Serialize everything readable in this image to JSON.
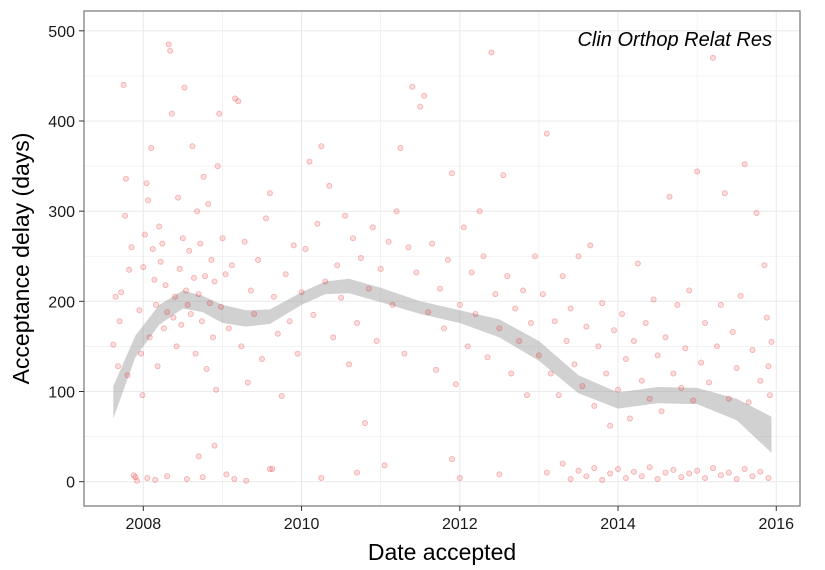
{
  "chart_data": {
    "type": "scatter",
    "title": "",
    "annotation": "Clin Orthop Relat Res",
    "xlabel": "Date accepted",
    "ylabel": "Acceptance delay (days)",
    "x_unit": "year",
    "xlim": [
      2007.25,
      2016.3
    ],
    "ylim": [
      -27,
      522
    ],
    "x_ticks": [
      2008,
      2010,
      2012,
      2014,
      2016
    ],
    "x_tick_labels": [
      "2008",
      "2010",
      "2012",
      "2014",
      "2016"
    ],
    "y_ticks": [
      0,
      100,
      200,
      300,
      400,
      500
    ],
    "y_tick_labels": [
      "0",
      "100",
      "200",
      "300",
      "400",
      "500"
    ],
    "grid": true,
    "legend": "none",
    "colors": {
      "points": "#e41a1c",
      "smooth_band": "#999999",
      "grid": "#ebebeb",
      "panel_border": "#7f7f7f"
    },
    "point_alpha": 0.15,
    "series": [
      {
        "name": "",
        "kind": "points",
        "points": [
          [
            2007.62,
            152
          ],
          [
            2007.65,
            205
          ],
          [
            2007.68,
            128
          ],
          [
            2007.7,
            178
          ],
          [
            2007.72,
            210
          ],
          [
            2007.75,
            440
          ],
          [
            2007.77,
            295
          ],
          [
            2007.78,
            336
          ],
          [
            2007.8,
            118
          ],
          [
            2007.82,
            235
          ],
          [
            2007.85,
            260
          ],
          [
            2007.88,
            7
          ],
          [
            2007.9,
            5
          ],
          [
            2007.92,
            1
          ],
          [
            2007.95,
            190
          ],
          [
            2007.97,
            142
          ],
          [
            2007.99,
            96
          ],
          [
            2008.0,
            238
          ],
          [
            2008.02,
            274
          ],
          [
            2008.04,
            331
          ],
          [
            2008.06,
            312
          ],
          [
            2008.08,
            160
          ],
          [
            2008.1,
            370
          ],
          [
            2008.12,
            258
          ],
          [
            2008.14,
            224
          ],
          [
            2008.16,
            196
          ],
          [
            2008.18,
            128
          ],
          [
            2008.2,
            283
          ],
          [
            2008.22,
            244
          ],
          [
            2008.24,
            264
          ],
          [
            2008.26,
            170
          ],
          [
            2008.28,
            218
          ],
          [
            2008.3,
            188
          ],
          [
            2008.32,
            485
          ],
          [
            2008.34,
            478
          ],
          [
            2008.36,
            408
          ],
          [
            2008.38,
            182
          ],
          [
            2008.4,
            205
          ],
          [
            2008.42,
            150
          ],
          [
            2008.44,
            315
          ],
          [
            2008.46,
            236
          ],
          [
            2008.48,
            174
          ],
          [
            2008.5,
            270
          ],
          [
            2008.52,
            437
          ],
          [
            2008.54,
            212
          ],
          [
            2008.56,
            196
          ],
          [
            2008.58,
            256
          ],
          [
            2008.6,
            186
          ],
          [
            2008.62,
            372
          ],
          [
            2008.64,
            226
          ],
          [
            2008.66,
            142
          ],
          [
            2008.68,
            300
          ],
          [
            2008.7,
            208
          ],
          [
            2008.72,
            264
          ],
          [
            2008.74,
            178
          ],
          [
            2008.76,
            338
          ],
          [
            2008.78,
            228
          ],
          [
            2008.8,
            125
          ],
          [
            2008.82,
            308
          ],
          [
            2008.84,
            198
          ],
          [
            2008.86,
            246
          ],
          [
            2008.88,
            160
          ],
          [
            2008.9,
            222
          ],
          [
            2008.92,
            102
          ],
          [
            2008.94,
            350
          ],
          [
            2008.96,
            408
          ],
          [
            2008.98,
            194
          ],
          [
            2009.0,
            270
          ],
          [
            2009.04,
            230
          ],
          [
            2009.08,
            170
          ],
          [
            2009.12,
            240
          ],
          [
            2009.16,
            425
          ],
          [
            2009.2,
            422
          ],
          [
            2009.24,
            150
          ],
          [
            2009.28,
            266
          ],
          [
            2009.32,
            110
          ],
          [
            2009.36,
            212
          ],
          [
            2009.4,
            186
          ],
          [
            2009.45,
            246
          ],
          [
            2009.5,
            136
          ],
          [
            2009.55,
            292
          ],
          [
            2009.6,
            320
          ],
          [
            2009.65,
            205
          ],
          [
            2009.7,
            164
          ],
          [
            2009.75,
            95
          ],
          [
            2009.8,
            230
          ],
          [
            2009.85,
            178
          ],
          [
            2009.9,
            262
          ],
          [
            2009.95,
            142
          ],
          [
            2010.0,
            210
          ],
          [
            2010.05,
            258
          ],
          [
            2010.1,
            355
          ],
          [
            2010.15,
            185
          ],
          [
            2010.2,
            286
          ],
          [
            2010.25,
            372
          ],
          [
            2010.3,
            222
          ],
          [
            2010.35,
            328
          ],
          [
            2010.4,
            160
          ],
          [
            2010.45,
            240
          ],
          [
            2010.5,
            204
          ],
          [
            2010.55,
            295
          ],
          [
            2010.6,
            130
          ],
          [
            2010.65,
            270
          ],
          [
            2010.7,
            176
          ],
          [
            2010.75,
            248
          ],
          [
            2010.8,
            65
          ],
          [
            2010.85,
            214
          ],
          [
            2010.9,
            282
          ],
          [
            2010.95,
            156
          ],
          [
            2011.0,
            236
          ],
          [
            2011.05,
            18
          ],
          [
            2011.1,
            266
          ],
          [
            2011.15,
            196
          ],
          [
            2011.2,
            300
          ],
          [
            2011.25,
            370
          ],
          [
            2011.3,
            142
          ],
          [
            2011.35,
            260
          ],
          [
            2011.4,
            438
          ],
          [
            2011.45,
            232
          ],
          [
            2011.5,
            416
          ],
          [
            2011.55,
            428
          ],
          [
            2011.6,
            188
          ],
          [
            2011.65,
            264
          ],
          [
            2011.7,
            124
          ],
          [
            2011.75,
            214
          ],
          [
            2011.8,
            170
          ],
          [
            2011.85,
            246
          ],
          [
            2011.9,
            342
          ],
          [
            2011.95,
            108
          ],
          [
            2012.0,
            196
          ],
          [
            2012.05,
            282
          ],
          [
            2012.1,
            150
          ],
          [
            2012.15,
            232
          ],
          [
            2012.2,
            186
          ],
          [
            2012.25,
            300
          ],
          [
            2012.3,
            250
          ],
          [
            2012.35,
            138
          ],
          [
            2012.4,
            476
          ],
          [
            2012.45,
            208
          ],
          [
            2012.5,
            170
          ],
          [
            2012.55,
            340
          ],
          [
            2012.6,
            228
          ],
          [
            2012.65,
            120
          ],
          [
            2012.7,
            192
          ],
          [
            2012.75,
            156
          ],
          [
            2012.8,
            212
          ],
          [
            2012.85,
            96
          ],
          [
            2012.9,
            176
          ],
          [
            2012.95,
            250
          ],
          [
            2013.0,
            140
          ],
          [
            2013.05,
            208
          ],
          [
            2013.1,
            386
          ],
          [
            2013.15,
            120
          ],
          [
            2013.2,
            178
          ],
          [
            2013.25,
            96
          ],
          [
            2013.3,
            228
          ],
          [
            2013.35,
            156
          ],
          [
            2013.4,
            192
          ],
          [
            2013.45,
            130
          ],
          [
            2013.5,
            250
          ],
          [
            2013.55,
            106
          ],
          [
            2013.6,
            172
          ],
          [
            2013.65,
            262
          ],
          [
            2013.7,
            84
          ],
          [
            2013.75,
            150
          ],
          [
            2013.8,
            198
          ],
          [
            2013.85,
            120
          ],
          [
            2013.9,
            62
          ],
          [
            2013.95,
            168
          ],
          [
            2014.0,
            102
          ],
          [
            2014.05,
            186
          ],
          [
            2014.1,
            136
          ],
          [
            2014.15,
            70
          ],
          [
            2014.2,
            156
          ],
          [
            2014.25,
            242
          ],
          [
            2014.3,
            112
          ],
          [
            2014.35,
            176
          ],
          [
            2014.4,
            92
          ],
          [
            2014.45,
            202
          ],
          [
            2014.5,
            140
          ],
          [
            2014.55,
            78
          ],
          [
            2014.6,
            160
          ],
          [
            2014.65,
            316
          ],
          [
            2014.7,
            120
          ],
          [
            2014.75,
            196
          ],
          [
            2014.8,
            104
          ],
          [
            2014.85,
            148
          ],
          [
            2014.9,
            212
          ],
          [
            2014.95,
            90
          ],
          [
            2015.0,
            344
          ],
          [
            2015.05,
            132
          ],
          [
            2015.1,
            176
          ],
          [
            2015.15,
            110
          ],
          [
            2015.2,
            470
          ],
          [
            2015.25,
            150
          ],
          [
            2015.3,
            196
          ],
          [
            2015.35,
            320
          ],
          [
            2015.4,
            92
          ],
          [
            2015.45,
            166
          ],
          [
            2015.5,
            126
          ],
          [
            2015.55,
            206
          ],
          [
            2015.6,
            352
          ],
          [
            2015.65,
            88
          ],
          [
            2015.7,
            146
          ],
          [
            2015.75,
            298
          ],
          [
            2015.8,
            112
          ],
          [
            2015.85,
            240
          ],
          [
            2015.88,
            182
          ],
          [
            2015.9,
            128
          ],
          [
            2015.92,
            96
          ],
          [
            2015.94,
            155
          ],
          [
            2008.05,
            4
          ],
          [
            2008.15,
            2
          ],
          [
            2008.3,
            6
          ],
          [
            2008.55,
            3
          ],
          [
            2008.7,
            28
          ],
          [
            2008.75,
            5
          ],
          [
            2008.9,
            40
          ],
          [
            2009.05,
            8
          ],
          [
            2009.15,
            3
          ],
          [
            2009.3,
            1
          ],
          [
            2009.6,
            14
          ],
          [
            2009.63,
            14
          ],
          [
            2010.25,
            4
          ],
          [
            2010.7,
            10
          ],
          [
            2011.9,
            25
          ],
          [
            2012.0,
            4
          ],
          [
            2012.5,
            8
          ],
          [
            2013.1,
            10
          ],
          [
            2013.3,
            20
          ],
          [
            2013.4,
            3
          ],
          [
            2013.5,
            12
          ],
          [
            2013.6,
            6
          ],
          [
            2013.7,
            15
          ],
          [
            2013.8,
            2
          ],
          [
            2013.9,
            9
          ],
          [
            2014.0,
            14
          ],
          [
            2014.1,
            4
          ],
          [
            2014.2,
            11
          ],
          [
            2014.3,
            6
          ],
          [
            2014.4,
            16
          ],
          [
            2014.5,
            3
          ],
          [
            2014.6,
            10
          ],
          [
            2014.7,
            13
          ],
          [
            2014.8,
            5
          ],
          [
            2014.9,
            9
          ],
          [
            2015.0,
            12
          ],
          [
            2015.1,
            4
          ],
          [
            2015.2,
            15
          ],
          [
            2015.3,
            7
          ],
          [
            2015.4,
            10
          ],
          [
            2015.5,
            3
          ],
          [
            2015.6,
            14
          ],
          [
            2015.7,
            6
          ],
          [
            2015.8,
            11
          ],
          [
            2015.9,
            4
          ]
        ]
      },
      {
        "name": "",
        "kind": "smooth_band",
        "x": [
          2007.62,
          2007.9,
          2008.2,
          2008.5,
          2008.75,
          2009.0,
          2009.3,
          2009.6,
          2010.0,
          2010.3,
          2010.6,
          2011.0,
          2011.5,
          2012.0,
          2012.5,
          2013.0,
          2013.5,
          2014.0,
          2014.5,
          2015.0,
          2015.5,
          2015.94
        ],
        "y": [
          88,
          150,
          185,
          202,
          197,
          186,
          181,
          183,
          203,
          215,
          217,
          207,
          193,
          183,
          170,
          145,
          108,
          90,
          96,
          95,
          80,
          52
        ],
        "lower": [
          70,
          138,
          174,
          192,
          188,
          176,
          172,
          175,
          196,
          208,
          209,
          199,
          186,
          176,
          160,
          134,
          98,
          81,
          87,
          86,
          68,
          32
        ],
        "upper": [
          106,
          162,
          196,
          212,
          206,
          196,
          190,
          191,
          210,
          222,
          225,
          215,
          200,
          190,
          180,
          156,
          118,
          99,
          105,
          104,
          92,
          72
        ]
      }
    ]
  }
}
